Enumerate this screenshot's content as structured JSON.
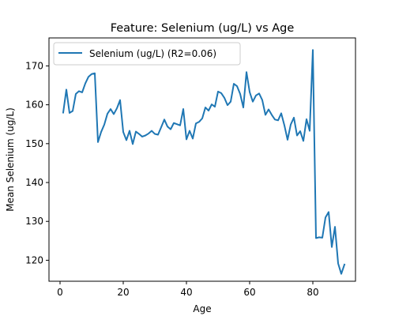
{
  "chart_data": {
    "type": "line",
    "title": "Feature: Selenium (ug/L) vs Age",
    "xlabel": "Age",
    "ylabel": "Mean Selenium (ug/L)",
    "xlim": [
      -3.5,
      93.5
    ],
    "ylim": [
      114.6,
      177.2
    ],
    "xticks": [
      0,
      20,
      40,
      60,
      80
    ],
    "yticks": [
      120,
      130,
      140,
      150,
      160,
      170
    ],
    "grid": false,
    "legend_position": "top-left",
    "series": [
      {
        "name": "Selenium (ug/L) (R2=0.06)",
        "color": "#1f77b4",
        "x": [
          1,
          2,
          3,
          4,
          5,
          6,
          7,
          8,
          9,
          10,
          11,
          12,
          13,
          14,
          15,
          16,
          17,
          18,
          19,
          20,
          21,
          22,
          23,
          24,
          25,
          26,
          27,
          28,
          29,
          30,
          31,
          32,
          33,
          34,
          35,
          36,
          37,
          38,
          39,
          40,
          41,
          42,
          43,
          44,
          45,
          46,
          47,
          48,
          49,
          50,
          51,
          52,
          53,
          54,
          55,
          56,
          57,
          58,
          59,
          60,
          61,
          62,
          63,
          64,
          65,
          66,
          67,
          68,
          69,
          70,
          71,
          72,
          73,
          74,
          75,
          76,
          77,
          78,
          79,
          80,
          81,
          82,
          83,
          84,
          85,
          86,
          87,
          88,
          89,
          90
        ],
        "y": [
          158.0,
          163.9,
          157.9,
          158.4,
          162.8,
          163.5,
          163.2,
          165.5,
          167.2,
          167.9,
          168.1,
          150.4,
          153.0,
          154.9,
          157.7,
          158.9,
          157.6,
          159.1,
          161.2,
          153.0,
          150.9,
          153.3,
          149.9,
          153.1,
          152.5,
          151.8,
          152.1,
          152.6,
          153.3,
          152.5,
          152.3,
          154.2,
          156.2,
          154.4,
          153.7,
          155.3,
          155.0,
          154.7,
          158.9,
          151.1,
          153.3,
          151.3,
          155.2,
          155.6,
          156.5,
          159.3,
          158.5,
          160.1,
          159.5,
          163.4,
          163.0,
          161.8,
          159.9,
          160.8,
          165.4,
          164.8,
          162.8,
          159.3,
          168.4,
          163.3,
          160.8,
          162.4,
          162.9,
          161.2,
          157.4,
          158.8,
          157.4,
          156.2,
          156.0,
          157.8,
          154.7,
          151.0,
          154.9,
          156.7,
          152.1,
          153.2,
          150.7,
          156.3,
          153.3,
          174.1,
          125.7,
          125.9,
          125.8,
          131.0,
          132.4,
          123.4,
          128.6,
          119.2,
          116.5,
          118.9
        ]
      }
    ]
  }
}
